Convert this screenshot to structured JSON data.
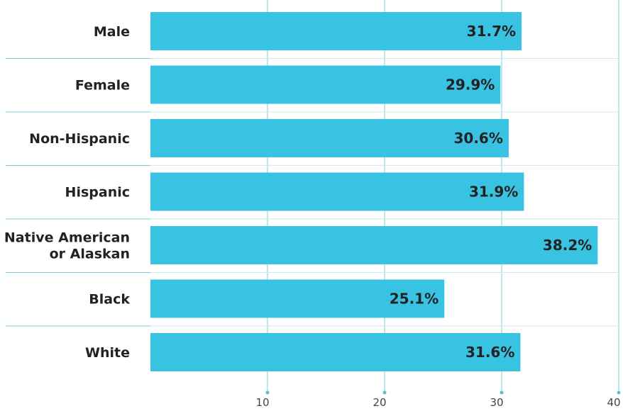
{
  "chart_data": {
    "type": "bar",
    "orientation": "horizontal",
    "title": "",
    "xlabel": "",
    "ylabel": "",
    "categories": [
      [
        "Male"
      ],
      [
        "Female"
      ],
      [
        "Non-Hispanic"
      ],
      [
        "Hispanic"
      ],
      [
        "Native American",
        "or Alaskan"
      ],
      [
        "Black"
      ],
      [
        "White"
      ]
    ],
    "values": [
      31.7,
      29.9,
      30.6,
      31.9,
      38.2,
      25.1,
      31.6
    ],
    "value_labels": [
      "31.7%",
      "29.9%",
      "30.6%",
      "31.9%",
      "38.2%",
      "25.1%",
      "31.6%"
    ],
    "xlim": [
      0,
      40
    ],
    "xticks": [
      10,
      20,
      30,
      40
    ],
    "xtick_labels": [
      "10",
      "20",
      "30",
      "40"
    ],
    "grid": true,
    "legend": "none",
    "colors": {
      "bar": "#38c3e3",
      "grid": "#7ccfd9",
      "row_separator": "#7ccfd9",
      "tick_dot": "#5bbfca",
      "text": "#222222"
    }
  }
}
